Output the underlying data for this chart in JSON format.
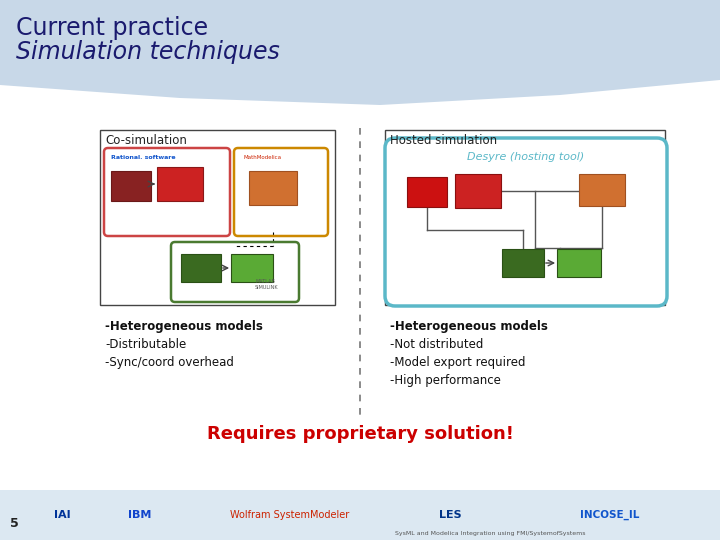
{
  "title_line1": "Current practice",
  "title_line2": "Simulation techniques",
  "title_color": "#1a1a6e",
  "header_bg_color": "#c8d8e8",
  "main_bg_color": "#ffffff",
  "cosim_label": "Co-simulation",
  "hosted_label": "Hosted simulation",
  "desyre_label": "Desyre (hosting tool)",
  "cosim_bullets_bold": "-Heterogeneous models",
  "cosim_bullets_normal": [
    "-Distributable",
    "-Sync/coord overhead"
  ],
  "hosted_bullets_bold": "-Heterogeneous models",
  "hosted_bullets_normal": [
    "-Not distributed",
    "-Model export required",
    "-High performance"
  ],
  "requires_text": "Requires proprietary solution!",
  "requires_color": "#cc0000",
  "footer_text": "SysML and Modelica Integration using FMI/SystemofSystems",
  "slide_number": "5",
  "box_border_color": "#444444",
  "dashed_line_color": "#777777",
  "teal_border_color": "#5bb8c8",
  "cosim_red_border": "#cc4444",
  "cosim_orange_border": "#cc8800",
  "cosim_green_border": "#4a7a30",
  "dark_red": "#882222",
  "bright_red": "#cc2222",
  "orange": "#d07030",
  "dark_green": "#3a6a20",
  "light_green": "#5aaa35",
  "footer_bg": "#dce8f2"
}
